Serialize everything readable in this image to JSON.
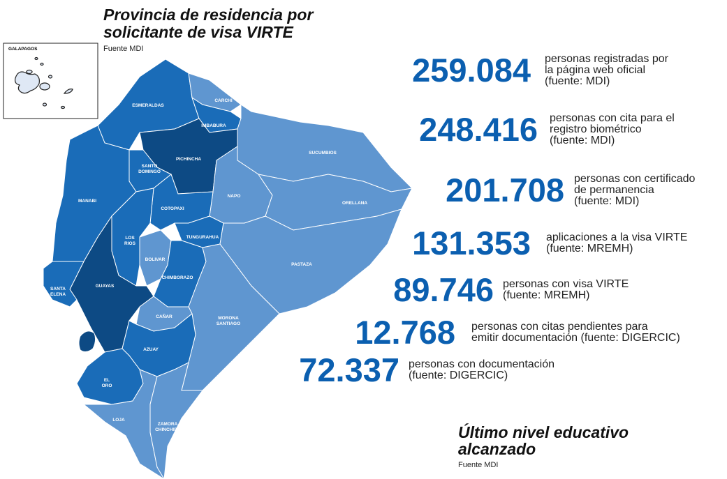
{
  "header": {
    "title": [
      "Provincia de residencia por",
      "solicitante de visa VIRTE"
    ],
    "source": "Fuente MDI"
  },
  "inset": {
    "label": "GALAPAGOS",
    "color": "#dfe8f5"
  },
  "provinces": [
    {
      "label": [
        "ESMERALDAS"
      ],
      "color": "#1a6cb8"
    },
    {
      "label": [
        "CARCHI"
      ],
      "color": "#5f96d0"
    },
    {
      "label": [
        "IMBABURA"
      ],
      "color": "#1a6cb8"
    },
    {
      "label": [
        "PICHINCHA"
      ],
      "color": "#0d4a84"
    },
    {
      "label": [
        "SANTO",
        "DOMINGO"
      ],
      "color": "#1a6cb8"
    },
    {
      "label": [
        "MANABI"
      ],
      "color": "#1a6cb8"
    },
    {
      "label": [
        "SUCUMBIOS"
      ],
      "color": "#5f96d0"
    },
    {
      "label": [
        "NAPO"
      ],
      "color": "#5f96d0"
    },
    {
      "label": [
        "ORELLANA"
      ],
      "color": "#5f96d0"
    },
    {
      "label": [
        "COTOPAXI"
      ],
      "color": "#1a6cb8"
    },
    {
      "label": [
        "TUNGURAHUA"
      ],
      "color": "#1a6cb8"
    },
    {
      "label": [
        "PASTAZA"
      ],
      "color": "#5f96d0"
    },
    {
      "label": [
        "LOS",
        "RIOS"
      ],
      "color": "#1a6cb8"
    },
    {
      "label": [
        "BOLIVAR"
      ],
      "color": "#5f96d0"
    },
    {
      "label": [
        "CHIMBORAZO"
      ],
      "color": "#1a6cb8"
    },
    {
      "label": [
        "GUAYAS"
      ],
      "color": "#0d4a84"
    },
    {
      "label": [
        "SANTA",
        "ELENA"
      ],
      "color": "#1a6cb8"
    },
    {
      "label": [
        "MORONA",
        "SANTIAGO"
      ],
      "color": "#5f96d0"
    },
    {
      "label": [
        "CAÑAR"
      ],
      "color": "#5f96d0"
    },
    {
      "label": [
        "AZUAY"
      ],
      "color": "#1a6cb8"
    },
    {
      "label": [
        "EL",
        "ORO"
      ],
      "color": "#1a6cb8"
    },
    {
      "label": [
        "LOJA"
      ],
      "color": "#5f96d0"
    },
    {
      "label": [
        "ZAMORA",
        "CHINCHIPE"
      ],
      "color": "#5f96d0"
    }
  ],
  "stats": [
    {
      "value": "259.084",
      "text": [
        "personas registradas por",
        "la página web oficial",
        "(fuente: MDI)"
      ]
    },
    {
      "value": "248.416",
      "text": [
        "personas con cita para el",
        "registro biométrico",
        "(fuente: MDI)"
      ]
    },
    {
      "value": "201.708",
      "text": [
        "personas con certificado",
        "de permanencia",
        "(fuente: MDI)"
      ]
    },
    {
      "value": "131.353",
      "text": [
        "aplicaciones a la visa VIRTE",
        "(fuente: MREMH)"
      ]
    },
    {
      "value": "89.746",
      "text": [
        "personas con visa VIRTE",
        "(fuente: MREMH)"
      ]
    },
    {
      "value": "12.768",
      "text": [
        "personas con citas pendientes para",
        "emitir documentación (fuente: DIGERCIC)"
      ]
    },
    {
      "value": "72.337",
      "text": [
        "personas con documentación",
        "(fuente: DIGERCIC)"
      ]
    }
  ],
  "stat_color": "#0b5fb0",
  "section": {
    "title": [
      "Último nivel educativo",
      "alcanzado"
    ],
    "source": "Fuente MDI"
  }
}
